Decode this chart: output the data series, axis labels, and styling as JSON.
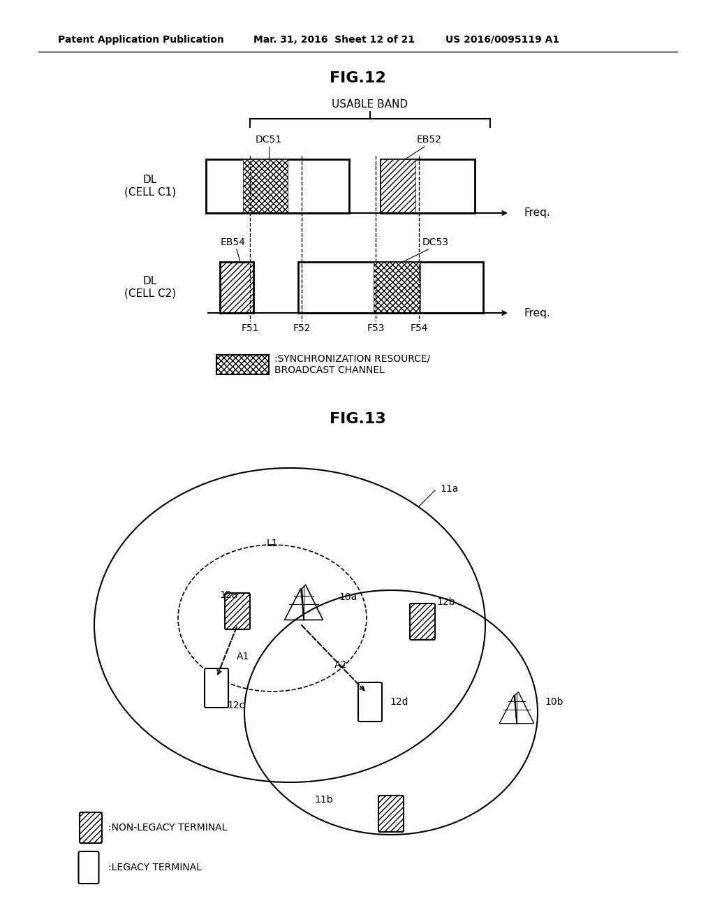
{
  "header_left": "Patent Application Publication",
  "header_mid": "Mar. 31, 2016  Sheet 12 of 21",
  "header_right": "US 2016/0095119 A1",
  "fig12_title": "FIG.12",
  "fig13_title": "FIG.13",
  "usable_band_label": "USABLE BAND",
  "freq_label": "Freq.",
  "dl_c1_label": "DL\n(CELL C1)",
  "dl_c2_label": "DL\n(CELL C2)",
  "dc51_label": "DC51",
  "eb52_label": "EB52",
  "eb54_label": "EB54",
  "dc53_label": "DC53",
  "f51_label": "F51",
  "f52_label": "F52",
  "f53_label": "F53",
  "f54_label": "F54",
  "legend_sync": ":SYNCHRONIZATION RESOURCE/\nBROADCAST CHANNEL",
  "legend_nonlegacy": ":NON-LEGACY TERMINAL",
  "legend_legacy": ":LEGACY TERMINAL",
  "label_11a": "11a",
  "label_11b": "11b",
  "label_L1": "L1",
  "label_10a": "10a",
  "label_10b": "10b",
  "label_12a": "12a",
  "label_12b": "12b",
  "label_12c": "12c",
  "label_12d": "12d",
  "label_A1": "A1",
  "label_A2": "A2",
  "bg_color": "#ffffff"
}
